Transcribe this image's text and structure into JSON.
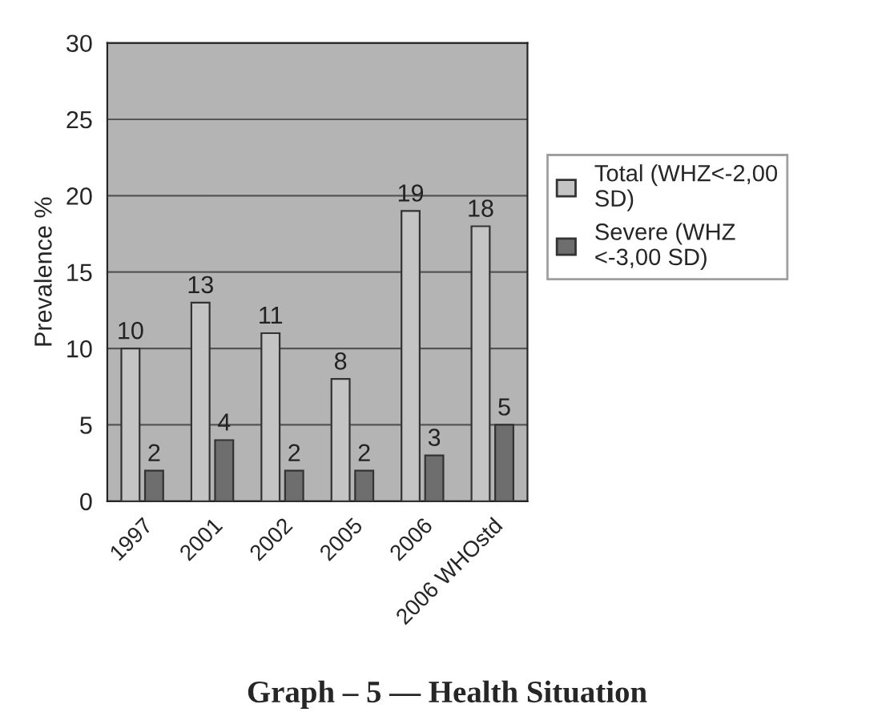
{
  "chart_data": {
    "type": "bar",
    "ylabel": "Prevalence %",
    "categories": [
      "1997",
      "2001",
      "2002",
      "2005",
      "2006",
      "2006 WHOstd"
    ],
    "series": [
      {
        "name": "Total (WHZ<-2,00 SD)",
        "color": "#c4c4c4",
        "values": [
          10,
          13,
          11,
          8,
          19,
          18
        ]
      },
      {
        "name": "Severe (WHZ <-3,00 SD)",
        "color": "#6e6e6e",
        "values": [
          2,
          4,
          2,
          2,
          3,
          5
        ]
      }
    ],
    "ylim": [
      0,
      30
    ],
    "yticks": [
      0,
      5,
      10,
      15,
      20,
      25,
      30
    ],
    "grid": "y",
    "legend": "right",
    "data_labels": true,
    "annotations": [
      "Graph – 5 — Health Situation"
    ]
  }
}
